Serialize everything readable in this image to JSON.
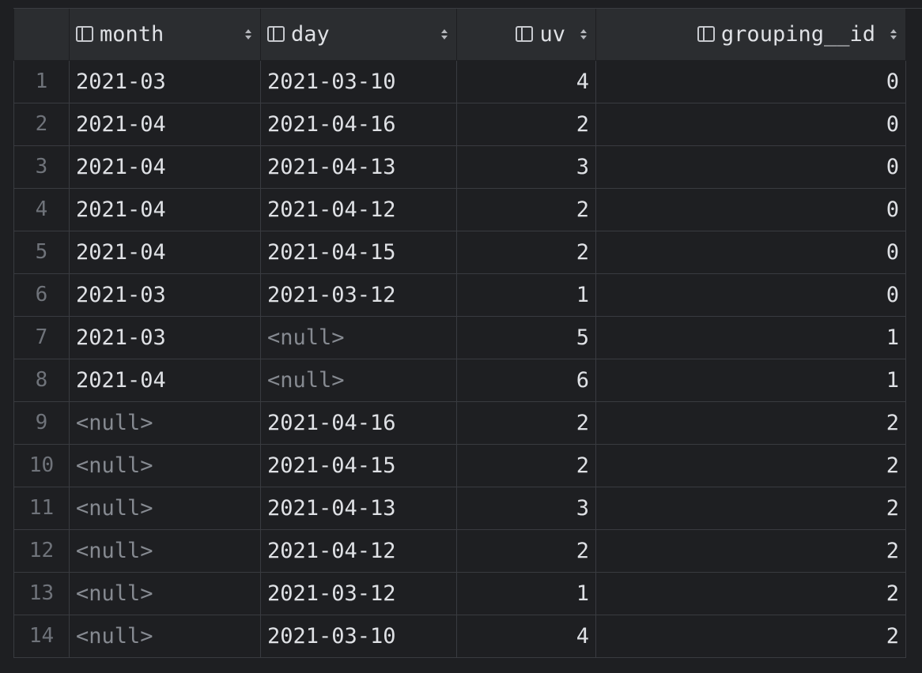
{
  "columns": [
    {
      "key": "month",
      "label": "month",
      "align": "left"
    },
    {
      "key": "day",
      "label": "day",
      "align": "left"
    },
    {
      "key": "uv",
      "label": "uv",
      "align": "right"
    },
    {
      "key": "grouping__id",
      "label": "grouping__id",
      "align": "right"
    }
  ],
  "null_text": "<null>",
  "rows": [
    {
      "n": "1",
      "month": "2021-03",
      "day": "2021-03-10",
      "uv": "4",
      "grouping__id": "0"
    },
    {
      "n": "2",
      "month": "2021-04",
      "day": "2021-04-16",
      "uv": "2",
      "grouping__id": "0"
    },
    {
      "n": "3",
      "month": "2021-04",
      "day": "2021-04-13",
      "uv": "3",
      "grouping__id": "0"
    },
    {
      "n": "4",
      "month": "2021-04",
      "day": "2021-04-12",
      "uv": "2",
      "grouping__id": "0"
    },
    {
      "n": "5",
      "month": "2021-04",
      "day": "2021-04-15",
      "uv": "2",
      "grouping__id": "0"
    },
    {
      "n": "6",
      "month": "2021-03",
      "day": "2021-03-12",
      "uv": "1",
      "grouping__id": "0"
    },
    {
      "n": "7",
      "month": "2021-03",
      "day": "<null>",
      "uv": "5",
      "grouping__id": "1"
    },
    {
      "n": "8",
      "month": "2021-04",
      "day": "<null>",
      "uv": "6",
      "grouping__id": "1"
    },
    {
      "n": "9",
      "month": "<null>",
      "day": "2021-04-16",
      "uv": "2",
      "grouping__id": "2"
    },
    {
      "n": "10",
      "month": "<null>",
      "day": "2021-04-15",
      "uv": "2",
      "grouping__id": "2"
    },
    {
      "n": "11",
      "month": "<null>",
      "day": "2021-04-13",
      "uv": "3",
      "grouping__id": "2"
    },
    {
      "n": "12",
      "month": "<null>",
      "day": "2021-04-12",
      "uv": "2",
      "grouping__id": "2"
    },
    {
      "n": "13",
      "month": "<null>",
      "day": "2021-03-12",
      "uv": "1",
      "grouping__id": "2"
    },
    {
      "n": "14",
      "month": "<null>",
      "day": "2021-03-10",
      "uv": "4",
      "grouping__id": "2"
    }
  ]
}
